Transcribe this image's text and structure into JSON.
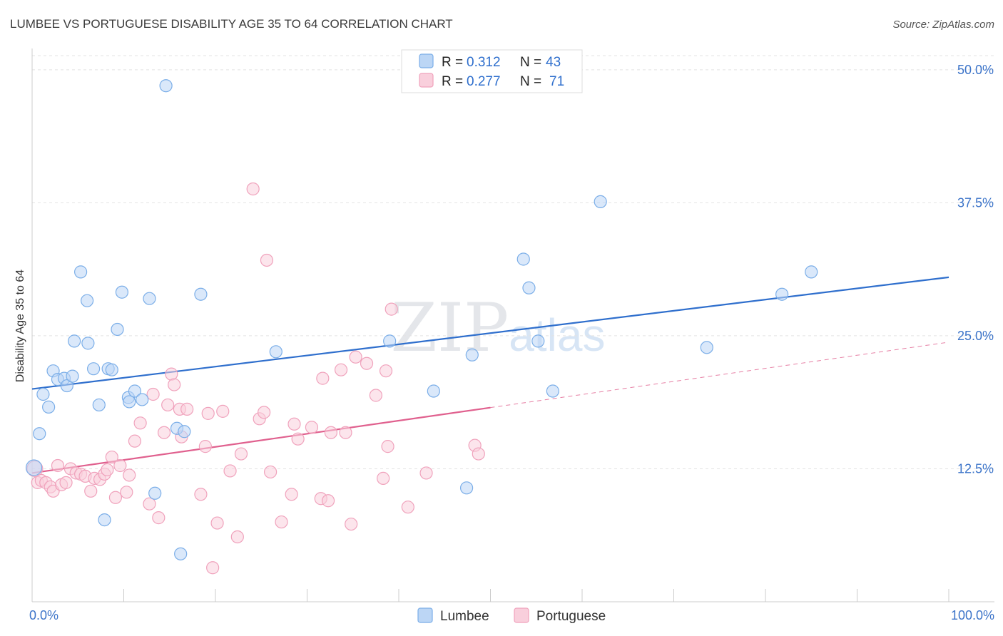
{
  "chart_data": {
    "type": "scatter",
    "title": "LUMBEE VS PORTUGUESE DISABILITY AGE 35 TO 64 CORRELATION CHART",
    "source": "Source: ZipAtlas.com",
    "watermark": "ZIPatlas",
    "xlabel": "",
    "ylabel": "Disability Age 35 to 64",
    "xlim": [
      0,
      100
    ],
    "ylim": [
      0,
      52
    ],
    "x_tick_labels": [
      {
        "value": 0,
        "label": "0.0%"
      },
      {
        "value": 100,
        "label": "100.0%"
      }
    ],
    "y_tick_labels": [
      {
        "value": 12.5,
        "label": "12.5%"
      },
      {
        "value": 25.0,
        "label": "25.0%"
      },
      {
        "value": 37.5,
        "label": "37.5%"
      },
      {
        "value": 50.0,
        "label": "50.0%"
      }
    ],
    "grid": true,
    "legend_position": "top-center",
    "series": [
      {
        "name": "Lumbee",
        "color": "#7baee8",
        "fill": "#bcd6f5",
        "line_color": "#2f6fcd",
        "r_label": "R =",
        "r_value": "0.312",
        "n_label": "N =",
        "n_value": "43",
        "trend": {
          "x0": 0,
          "y0": 20.0,
          "x1": 100,
          "y1": 30.5,
          "dashed_from": null
        },
        "points": [
          [
            0.2,
            12.6
          ],
          [
            0.8,
            15.8
          ],
          [
            1.2,
            19.5
          ],
          [
            1.8,
            18.3
          ],
          [
            2.3,
            21.7
          ],
          [
            2.8,
            20.9
          ],
          [
            3.5,
            21.0
          ],
          [
            3.8,
            20.3
          ],
          [
            4.4,
            21.2
          ],
          [
            4.6,
            24.5
          ],
          [
            5.3,
            31.0
          ],
          [
            6.0,
            28.3
          ],
          [
            6.1,
            24.3
          ],
          [
            6.7,
            21.9
          ],
          [
            7.3,
            18.5
          ],
          [
            7.9,
            7.7
          ],
          [
            8.3,
            21.9
          ],
          [
            8.7,
            21.8
          ],
          [
            9.3,
            25.6
          ],
          [
            9.8,
            29.1
          ],
          [
            10.5,
            19.2
          ],
          [
            10.6,
            18.8
          ],
          [
            11.2,
            19.8
          ],
          [
            12.0,
            19.0
          ],
          [
            12.8,
            28.5
          ],
          [
            13.4,
            10.2
          ],
          [
            14.6,
            48.5
          ],
          [
            15.8,
            16.3
          ],
          [
            16.2,
            4.5
          ],
          [
            16.6,
            16.0
          ],
          [
            18.4,
            28.9
          ],
          [
            26.6,
            23.5
          ],
          [
            39.0,
            24.5
          ],
          [
            43.8,
            19.8
          ],
          [
            47.4,
            10.7
          ],
          [
            48.0,
            23.2
          ],
          [
            53.6,
            32.2
          ],
          [
            54.2,
            29.5
          ],
          [
            55.2,
            24.5
          ],
          [
            56.8,
            19.8
          ],
          [
            62.0,
            37.6
          ],
          [
            73.6,
            23.9
          ],
          [
            81.8,
            28.9
          ],
          [
            85.0,
            31.0
          ]
        ]
      },
      {
        "name": "Portuguese",
        "color": "#f0a2bc",
        "fill": "#f9cfdc",
        "line_color": "#e0608e",
        "r_label": "R =",
        "r_value": "0.277",
        "n_label": "N =",
        "n_value": "71",
        "trend": {
          "x0": 0,
          "y0": 12.1,
          "x1": 100,
          "y1": 24.4,
          "solid_until": 50
        },
        "points": [
          [
            0.3,
            12.5
          ],
          [
            0.6,
            11.2
          ],
          [
            1.0,
            11.4
          ],
          [
            1.5,
            11.2
          ],
          [
            2.0,
            10.8
          ],
          [
            2.3,
            10.4
          ],
          [
            2.8,
            12.8
          ],
          [
            3.2,
            11.0
          ],
          [
            3.7,
            11.2
          ],
          [
            4.2,
            12.5
          ],
          [
            4.8,
            12.1
          ],
          [
            5.3,
            12.0
          ],
          [
            5.8,
            11.8
          ],
          [
            6.4,
            10.4
          ],
          [
            6.8,
            11.6
          ],
          [
            7.4,
            11.5
          ],
          [
            7.9,
            12.0
          ],
          [
            8.2,
            12.4
          ],
          [
            8.7,
            13.6
          ],
          [
            9.1,
            9.8
          ],
          [
            9.6,
            12.8
          ],
          [
            10.3,
            10.3
          ],
          [
            10.6,
            11.9
          ],
          [
            11.2,
            15.1
          ],
          [
            11.8,
            16.8
          ],
          [
            12.8,
            9.2
          ],
          [
            13.2,
            19.5
          ],
          [
            13.8,
            7.9
          ],
          [
            14.4,
            15.9
          ],
          [
            14.8,
            18.5
          ],
          [
            15.2,
            21.4
          ],
          [
            15.5,
            20.4
          ],
          [
            16.1,
            18.1
          ],
          [
            16.3,
            15.5
          ],
          [
            16.9,
            18.1
          ],
          [
            18.4,
            10.1
          ],
          [
            18.9,
            14.6
          ],
          [
            19.2,
            17.7
          ],
          [
            19.7,
            3.2
          ],
          [
            20.2,
            7.4
          ],
          [
            20.8,
            17.9
          ],
          [
            21.6,
            12.3
          ],
          [
            22.4,
            6.1
          ],
          [
            22.8,
            13.9
          ],
          [
            24.1,
            38.8
          ],
          [
            24.8,
            17.2
          ],
          [
            25.3,
            17.8
          ],
          [
            25.6,
            32.1
          ],
          [
            26.0,
            12.2
          ],
          [
            27.2,
            7.5
          ],
          [
            28.3,
            10.1
          ],
          [
            28.6,
            16.7
          ],
          [
            29.0,
            15.3
          ],
          [
            30.5,
            16.4
          ],
          [
            31.5,
            9.7
          ],
          [
            31.7,
            21.0
          ],
          [
            32.3,
            9.5
          ],
          [
            32.6,
            15.9
          ],
          [
            33.7,
            21.8
          ],
          [
            34.2,
            15.9
          ],
          [
            34.8,
            7.3
          ],
          [
            35.3,
            23.0
          ],
          [
            36.5,
            22.4
          ],
          [
            37.5,
            19.4
          ],
          [
            38.3,
            11.6
          ],
          [
            38.6,
            21.7
          ],
          [
            38.8,
            14.6
          ],
          [
            39.2,
            27.5
          ],
          [
            41.0,
            8.9
          ],
          [
            43.0,
            12.1
          ],
          [
            48.3,
            14.7
          ],
          [
            48.7,
            13.9
          ]
        ]
      }
    ]
  }
}
